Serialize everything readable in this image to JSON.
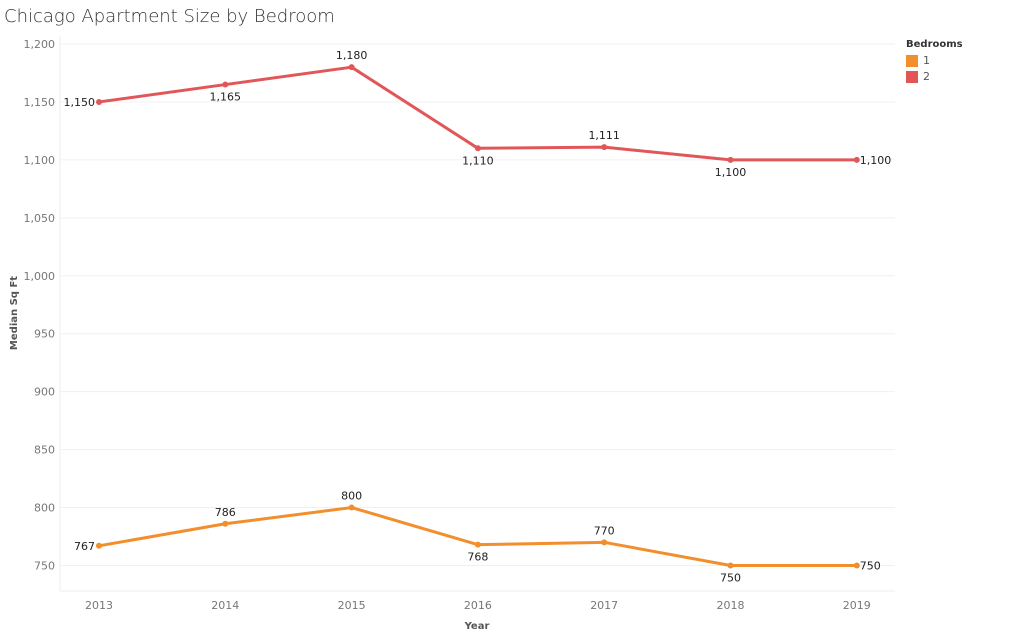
{
  "chart_data": {
    "type": "line",
    "title": "Chicago Apartment Size by Bedroom",
    "xlabel": "Year",
    "ylabel": "Median Sq Ft",
    "x": [
      "2013",
      "2014",
      "2015",
      "2016",
      "2017",
      "2018",
      "2019"
    ],
    "yticks": [
      750,
      800,
      850,
      900,
      950,
      1000,
      1050,
      1100,
      1150,
      1200
    ],
    "ytick_labels": [
      "750",
      "800",
      "850",
      "900",
      "950",
      "1,000",
      "1,050",
      "1,100",
      "1,150",
      "1,200"
    ],
    "ylim": [
      728,
      1200
    ],
    "grid": true,
    "legend": {
      "title": "Bedrooms",
      "placement": "top-right"
    },
    "series": [
      {
        "name": "1",
        "color": "#f28e2b",
        "values": [
          767,
          786,
          800,
          768,
          770,
          750,
          750
        ],
        "labels": [
          "767",
          "786",
          "800",
          "768",
          "770",
          "750",
          "750"
        ],
        "label_pos": [
          "left",
          "above",
          "above",
          "below",
          "above",
          "below",
          "right"
        ]
      },
      {
        "name": "2",
        "color": "#e15759",
        "values": [
          1150,
          1165,
          1180,
          1110,
          1111,
          1100,
          1100
        ],
        "labels": [
          "1,150",
          "1,165",
          "1,180",
          "1,110",
          "1,111",
          "1,100",
          "1,100"
        ],
        "label_pos": [
          "left",
          "below",
          "above",
          "below",
          "above",
          "below",
          "right"
        ]
      }
    ]
  }
}
